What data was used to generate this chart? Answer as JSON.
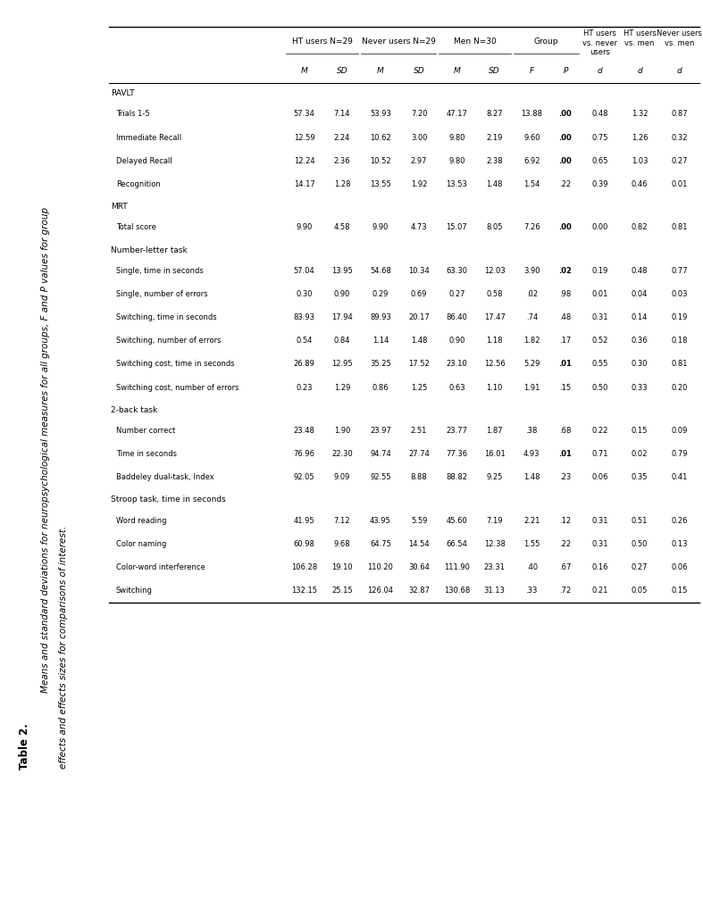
{
  "title": "Table 2.",
  "subtitle_line1": "Means and standard deviations for neuropsychological measures for all groups, F and P values for group",
  "subtitle_line2": "effects and effects sizes for comparisons of interest.",
  "sections": [
    {
      "name": "RAVLT",
      "rows": [
        [
          "Trials 1-5",
          "57.34",
          "7.14",
          "53.93",
          "7.20",
          "47.17",
          "8.27",
          "13.88",
          ".00",
          "0.48",
          "1.32",
          "0.87"
        ],
        [
          "Immediate Recall",
          "12.59",
          "2.24",
          "10.62",
          "3.00",
          "9.80",
          "2.19",
          "9.60",
          ".00",
          "0.75",
          "1.26",
          "0.32"
        ],
        [
          "Delayed Recall",
          "12.24",
          "2.36",
          "10.52",
          "2.97",
          "9.80",
          "2.38",
          "6.92",
          ".00",
          "0.65",
          "1.03",
          "0.27"
        ],
        [
          "Recognition",
          "14.17",
          "1.28",
          "13.55",
          "1.92",
          "13.53",
          "1.48",
          "1.54",
          ".22",
          "0.39",
          "0.46",
          "0.01"
        ]
      ]
    },
    {
      "name": "MRT",
      "rows": [
        [
          "Total score",
          "9.90",
          "4.58",
          "9.90",
          "4.73",
          "15.07",
          "8.05",
          "7.26",
          ".00",
          "0.00",
          "0.82",
          "0.81"
        ]
      ]
    },
    {
      "name": "Number-letter task",
      "rows": [
        [
          "Single, time in seconds",
          "57.04",
          "13.95",
          "54.68",
          "10.34",
          "63.30",
          "12.03",
          "3.90",
          ".02",
          "0.19",
          "0.48",
          "0.77"
        ],
        [
          "Single, number of errors",
          "0.30",
          "0.90",
          "0.29",
          "0.69",
          "0.27",
          "0.58",
          ".02",
          ".98",
          "0.01",
          "0.04",
          "0.03"
        ],
        [
          "Switching, time in seconds",
          "83.93",
          "17.94",
          "89.93",
          "20.17",
          "86.40",
          "17.47",
          ".74",
          ".48",
          "0.31",
          "0.14",
          "0.19"
        ],
        [
          "Switching, number of errors",
          "0.54",
          "0.84",
          "1.14",
          "1.48",
          "0.90",
          "1.18",
          "1.82",
          ".17",
          "0.52",
          "0.36",
          "0.18"
        ],
        [
          "Switching cost, time in seconds",
          "26.89",
          "12.95",
          "35.25",
          "17.52",
          "23.10",
          "12.56",
          "5.29",
          ".01",
          "0.55",
          "0.30",
          "0.81"
        ],
        [
          "Switching cost, number of errors",
          "0.23",
          "1.29",
          "0.86",
          "1.25",
          "0.63",
          "1.10",
          "1.91",
          ".15",
          "0.50",
          "0.33",
          "0.20"
        ]
      ]
    },
    {
      "name": "2-back task",
      "rows": [
        [
          "Number correct",
          "23.48",
          "1.90",
          "23.97",
          "2.51",
          "23.77",
          "1.87",
          ".38",
          ".68",
          "0.22",
          "0.15",
          "0.09"
        ],
        [
          "Time in seconds",
          "76.96",
          "22.30",
          "94.74",
          "27.74",
          "77.36",
          "16.01",
          "4.93",
          ".01",
          "0.71",
          "0.02",
          "0.79"
        ],
        [
          "Baddeley dual-task, Index",
          "92.05",
          "9.09",
          "92.55",
          "8.88",
          "88.82",
          "9.25",
          "1.48",
          ".23",
          "0.06",
          "0.35",
          "0.41"
        ]
      ]
    },
    {
      "name": "Stroop task, time in seconds",
      "rows": [
        [
          "Word reading",
          "41.95",
          "7.12",
          "43.95",
          "5.59",
          "45.60",
          "7.19",
          "2.21",
          ".12",
          "0.31",
          "0.51",
          "0.26"
        ],
        [
          "Color naming",
          "60.98",
          "9.68",
          "64.75",
          "14.54",
          "66.54",
          "12.38",
          "1.55",
          ".22",
          "0.31",
          "0.50",
          "0.13"
        ],
        [
          "Color-word interference",
          "106.28",
          "19.10",
          "110.20",
          "30.64",
          "111.90",
          "23.31",
          ".40",
          ".67",
          "0.16",
          "0.27",
          "0.06"
        ],
        [
          "Switching",
          "132.15",
          "25.15",
          "126.04",
          "32.87",
          "130.68",
          "31.13",
          ".33",
          ".72",
          "0.21",
          "0.05",
          "0.15"
        ]
      ]
    }
  ],
  "bold_p": [
    ".00",
    ".02",
    ".01"
  ],
  "bg_color": "#ffffff",
  "text_color": "#000000"
}
